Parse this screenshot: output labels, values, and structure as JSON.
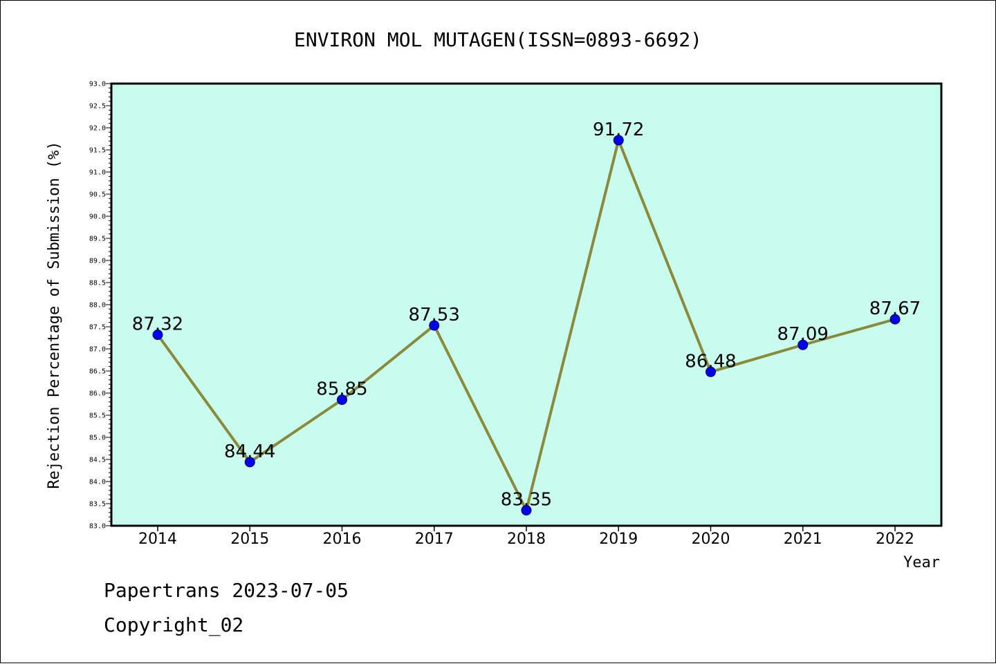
{
  "chart_data": {
    "type": "line",
    "title": "ENVIRON MOL MUTAGEN(ISSN=0893-6692)",
    "xlabel": "Year",
    "ylabel": "Rejection Percentage of Submission (%)",
    "x": [
      "2014",
      "2015",
      "2016",
      "2017",
      "2018",
      "2019",
      "2020",
      "2021",
      "2022"
    ],
    "series": [
      {
        "values": [
          87.32,
          84.44,
          85.85,
          87.53,
          83.35,
          91.72,
          86.48,
          87.09,
          87.67
        ],
        "labels": [
          "87.32",
          "84.44",
          "85.85",
          "87.53",
          "83.35",
          "91.72",
          "86.48",
          "87.09",
          "87.67"
        ]
      }
    ],
    "ylim": [
      83.0,
      93.0
    ],
    "yticks": [
      "83.0",
      "83.5",
      "84.0",
      "84.5",
      "85.0",
      "85.5",
      "86.0",
      "86.5",
      "87.0",
      "87.5",
      "88.0",
      "88.5",
      "89.0",
      "89.5",
      "90.0",
      "90.5",
      "91.0",
      "91.5",
      "92.0",
      "92.5",
      "93.0"
    ],
    "grid": false,
    "legend": "none",
    "colors": {
      "plot_background": "#c8fcee",
      "line": "#8b8a3a",
      "marker": "#0000ee"
    }
  },
  "footer": {
    "line1": "Papertrans 2023-07-05",
    "line2": "Copyright_02"
  }
}
